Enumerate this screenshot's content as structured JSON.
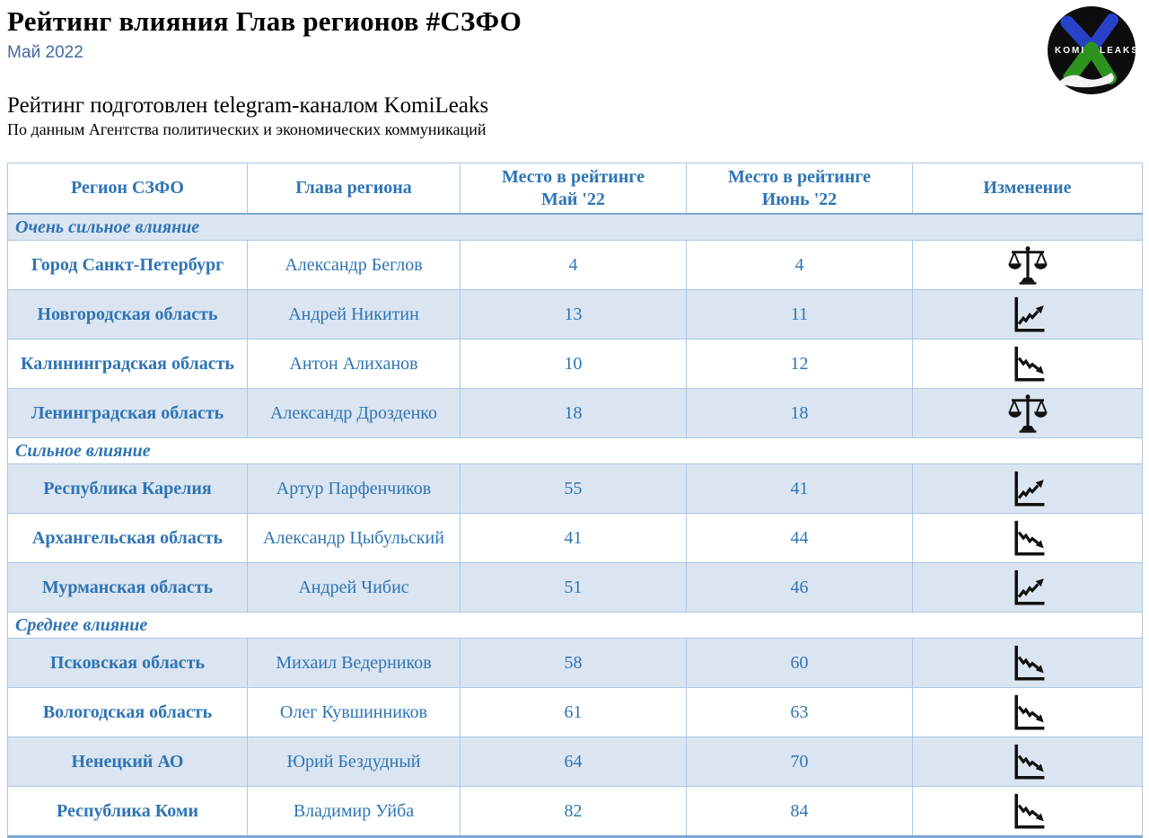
{
  "page": {
    "title": "Рейтинг влияния Глав регионов #СЗФО",
    "subtitle": "Май 2022",
    "prepared_by": "Рейтинг подготовлен telegram-каналом KomiLeaks",
    "source": "По данным Агентства политических и экономических коммуникаций"
  },
  "logo": {
    "text_left": "KOMI",
    "text_right": "LEAKS"
  },
  "colors": {
    "accent_text": "#2e74b5",
    "stripe_bg": "#dbe5f1",
    "grid_border": "#a9c7e4",
    "strong_border": "#7da7d4",
    "subtitle_text": "#44699e",
    "icon_black": "#111111",
    "logo_blue": "#2741c8",
    "logo_green": "#2e9220"
  },
  "table": {
    "headers": [
      "Регион СЗФО",
      "Глава региона",
      "Место в рейтинге\nМай '22",
      "Место в рейтинге\nИюнь '22",
      "Изменение"
    ],
    "sections": [
      {
        "label": "Очень сильное влияние",
        "rows": [
          {
            "region": "Город Санкт-Петербург",
            "head": "Александр Беглов",
            "may": "4",
            "june": "4",
            "change": "same"
          },
          {
            "region": "Новгородская область",
            "head": "Андрей Никитин",
            "may": "13",
            "june": "11",
            "change": "up"
          },
          {
            "region": "Калининградская область",
            "head": "Антон Алиханов",
            "may": "10",
            "june": "12",
            "change": "down"
          },
          {
            "region": "Ленинградская область",
            "head": "Александр Дрозденко",
            "may": "18",
            "june": "18",
            "change": "same"
          }
        ]
      },
      {
        "label": "Сильное влияние",
        "rows": [
          {
            "region": "Республика Карелия",
            "head": "Артур Парфенчиков",
            "may": "55",
            "june": "41",
            "change": "up"
          },
          {
            "region": "Архангельская область",
            "head": "Александр Цыбульский",
            "may": "41",
            "june": "44",
            "change": "down"
          },
          {
            "region": "Мурманская область",
            "head": "Андрей Чибис",
            "may": "51",
            "june": "46",
            "change": "up"
          }
        ]
      },
      {
        "label": "Среднее влияние",
        "rows": [
          {
            "region": "Псковская область",
            "head": "Михаил Ведерников",
            "may": "58",
            "june": "60",
            "change": "down"
          },
          {
            "region": "Вологодская область",
            "head": "Олег Кувшинников",
            "may": "61",
            "june": "63",
            "change": "down"
          },
          {
            "region": "Ненецкий АО",
            "head": "Юрий Бездудный",
            "may": "64",
            "june": "70",
            "change": "down"
          },
          {
            "region": "Республика Коми",
            "head": "Владимир Уйба",
            "may": "82",
            "june": "84",
            "change": "down"
          }
        ]
      }
    ]
  }
}
